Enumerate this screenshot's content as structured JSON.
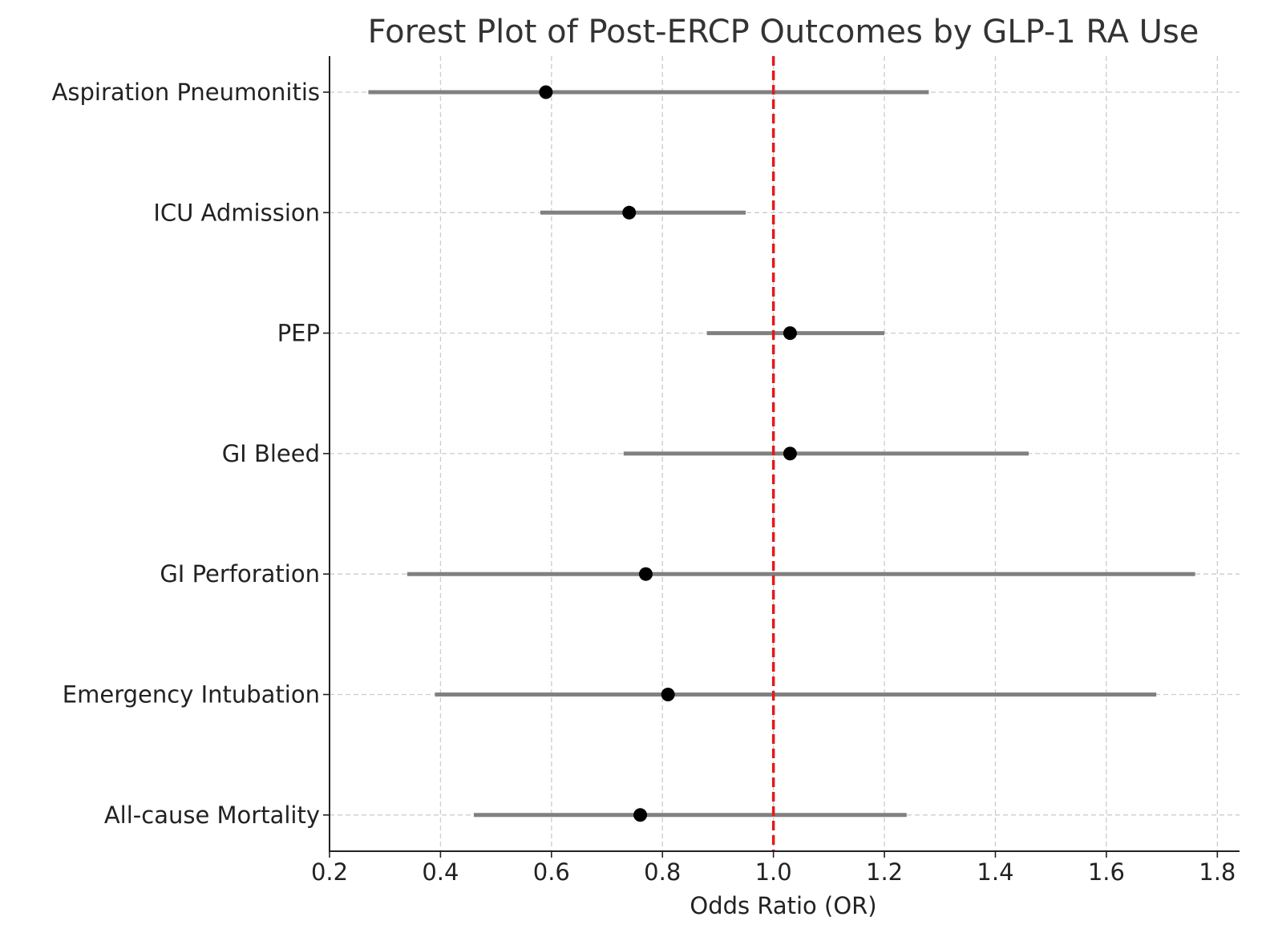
{
  "chart_data": {
    "type": "forest",
    "title": "Forest Plot of Post-ERCP Outcomes by GLP-1 RA Use",
    "xlabel": "Odds Ratio (OR)",
    "ylabel": "",
    "xlim": [
      0.2,
      1.84
    ],
    "xticks": [
      0.2,
      0.4,
      0.6,
      0.8,
      1.0,
      1.2,
      1.4,
      1.6,
      1.8
    ],
    "xtick_labels": [
      "0.2",
      "0.4",
      "0.6",
      "0.8",
      "1.0",
      "1.2",
      "1.4",
      "1.6",
      "1.8"
    ],
    "reference_line": {
      "x": 1.0,
      "style": "dashed",
      "color": "#e31a1c"
    },
    "grid": true,
    "point_color": "#000000",
    "ci_color": "#808080",
    "outcomes": [
      {
        "label": "Aspiration Pneumonitis",
        "or": 0.59,
        "ci_low": 0.27,
        "ci_high": 1.28
      },
      {
        "label": "ICU Admission",
        "or": 0.74,
        "ci_low": 0.58,
        "ci_high": 0.95
      },
      {
        "label": "PEP",
        "or": 1.03,
        "ci_low": 0.88,
        "ci_high": 1.2
      },
      {
        "label": "GI Bleed",
        "or": 1.03,
        "ci_low": 0.73,
        "ci_high": 1.46
      },
      {
        "label": "GI Perforation",
        "or": 0.77,
        "ci_low": 0.34,
        "ci_high": 1.76
      },
      {
        "label": "Emergency Intubation",
        "or": 0.81,
        "ci_low": 0.39,
        "ci_high": 1.69
      },
      {
        "label": "All-cause Mortality",
        "or": 0.76,
        "ci_low": 0.46,
        "ci_high": 1.24
      }
    ]
  }
}
